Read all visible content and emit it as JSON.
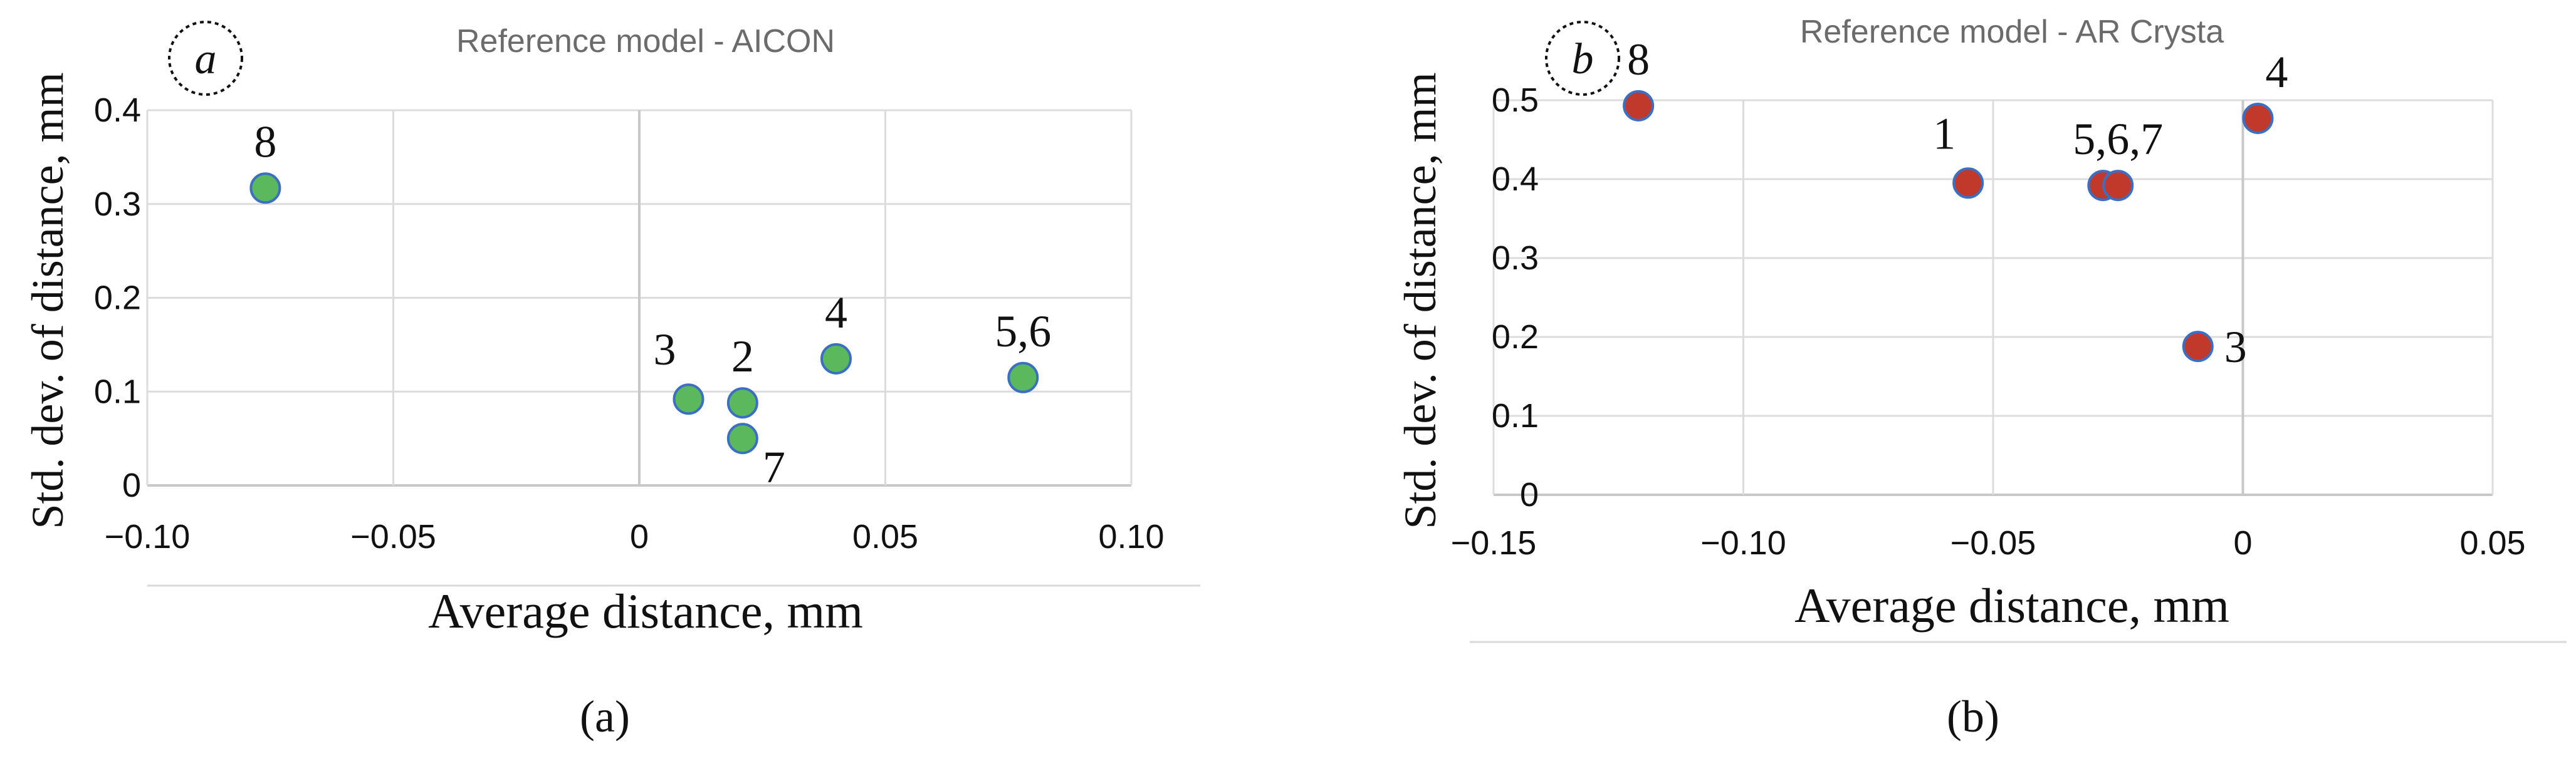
{
  "chart_data": [
    {
      "type": "scatter",
      "panel_badge": "a",
      "caption": "(a)",
      "title": "Reference model - AICON",
      "xlabel": "Average distance, mm",
      "ylabel": "Std. dev. of distance, mm",
      "xlim": [
        -0.1,
        0.1
      ],
      "ylim": [
        0,
        0.4
      ],
      "xticks": [
        -0.1,
        -0.05,
        0,
        0.05,
        0.1
      ],
      "xtick_labels": [
        "−0.10",
        "−0.05",
        "0",
        "0.05",
        "0.10"
      ],
      "yticks": [
        0,
        0.1,
        0.2,
        0.3,
        0.4
      ],
      "ytick_labels": [
        "0",
        "0.1",
        "0.2",
        "0.3",
        "0.4"
      ],
      "grid": true,
      "marker_color": "#5cb85c",
      "marker_edge": "#3a6fc4",
      "points": [
        {
          "x": -0.076,
          "y": 0.317,
          "label": "8",
          "label_pos": "above"
        },
        {
          "x": 0.01,
          "y": 0.092,
          "label": "3",
          "label_pos": "upper-left"
        },
        {
          "x": 0.021,
          "y": 0.088,
          "label": "2",
          "label_pos": "above"
        },
        {
          "x": 0.021,
          "y": 0.05,
          "label": "7",
          "label_pos": "lower-right"
        },
        {
          "x": 0.04,
          "y": 0.135,
          "label": "4",
          "label_pos": "above"
        },
        {
          "x": 0.078,
          "y": 0.115,
          "label": "5,6",
          "label_pos": "above"
        }
      ]
    },
    {
      "type": "scatter",
      "panel_badge": "b",
      "caption": "(b)",
      "title": "Reference model - AR Crysta",
      "xlabel": "Average distance, mm",
      "ylabel": "Std. dev. of distance, mm",
      "xlim": [
        -0.15,
        0.05
      ],
      "ylim": [
        0,
        0.5
      ],
      "xticks": [
        -0.15,
        -0.1,
        -0.05,
        0,
        0.05
      ],
      "xtick_labels": [
        "−0.15",
        "−0.10",
        "−0.05",
        "0",
        "0.05"
      ],
      "yticks": [
        0,
        0.1,
        0.2,
        0.3,
        0.4,
        0.5
      ],
      "ytick_labels": [
        "0",
        "0.1",
        "0.2",
        "0.3",
        "0.4",
        "0.5"
      ],
      "grid": true,
      "marker_color": "#c0392b",
      "marker_edge": "#3a6fc4",
      "points": [
        {
          "x": -0.121,
          "y": 0.493,
          "label": "8",
          "label_pos": "above"
        },
        {
          "x": -0.055,
          "y": 0.395,
          "label": "1",
          "label_pos": "upper-left"
        },
        {
          "x": -0.028,
          "y": 0.392,
          "label": "",
          "label_pos": "none"
        },
        {
          "x": -0.025,
          "y": 0.392,
          "label": "5,6,7",
          "label_pos": "above"
        },
        {
          "x": 0.003,
          "y": 0.477,
          "label": "4",
          "label_pos": "upper-right"
        },
        {
          "x": -0.009,
          "y": 0.188,
          "label": "3",
          "label_pos": "right"
        }
      ]
    }
  ]
}
